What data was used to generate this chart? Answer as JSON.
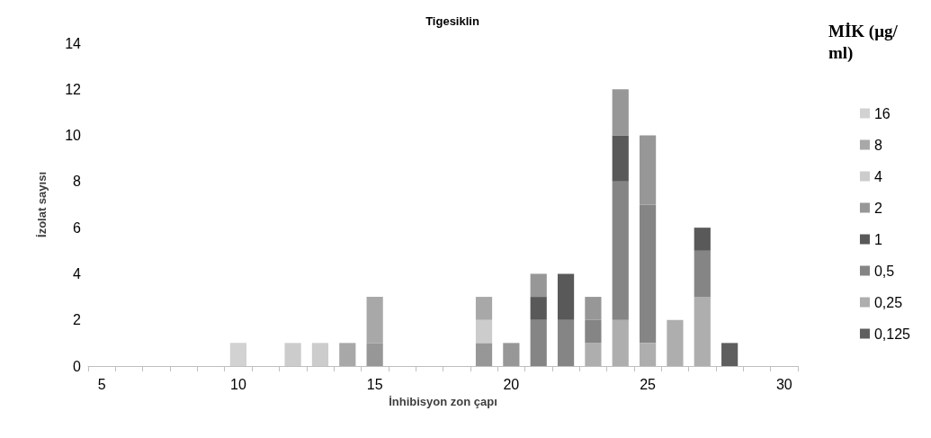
{
  "chart_data": {
    "type": "bar",
    "stacked": true,
    "title": "Tigesiklin",
    "xlabel": "İnhibisyon zon çapı",
    "ylabel": "İzolat sayısı",
    "legend_title": "MİK (μg/ml)",
    "legend": "right",
    "grid": false,
    "categories": [
      "5",
      null,
      null,
      null,
      null,
      "10",
      null,
      null,
      null,
      null,
      "15",
      null,
      null,
      null,
      null,
      "20",
      null,
      null,
      null,
      null,
      "25",
      null,
      null,
      null,
      null,
      "30"
    ],
    "ylim": [
      0,
      14
    ],
    "yticks": [
      0,
      2,
      4,
      6,
      8,
      10,
      12,
      14
    ],
    "series": [
      {
        "name": "0,125",
        "color": "#5e5e5e",
        "values": [
          null,
          null,
          null,
          null,
          null,
          null,
          null,
          null,
          null,
          null,
          null,
          null,
          null,
          null,
          null,
          null,
          null,
          null,
          null,
          null,
          null,
          null,
          null,
          1,
          null,
          null
        ]
      },
      {
        "name": "0,25",
        "color": "#aeaeae",
        "values": [
          null,
          null,
          null,
          null,
          null,
          null,
          null,
          null,
          null,
          null,
          null,
          null,
          null,
          null,
          null,
          null,
          null,
          null,
          1,
          2,
          1,
          2,
          3,
          null,
          null,
          null
        ]
      },
      {
        "name": "0,5",
        "color": "#858585",
        "values": [
          null,
          null,
          null,
          null,
          null,
          null,
          null,
          null,
          null,
          null,
          null,
          null,
          null,
          null,
          null,
          null,
          2,
          2,
          1,
          6,
          6,
          null,
          2,
          null,
          null,
          null
        ]
      },
      {
        "name": "1",
        "color": "#595959",
        "values": [
          null,
          null,
          null,
          null,
          null,
          null,
          null,
          null,
          null,
          null,
          null,
          null,
          null,
          null,
          null,
          null,
          1,
          2,
          null,
          2,
          null,
          null,
          1,
          null,
          null,
          null
        ]
      },
      {
        "name": "2",
        "color": "#979797",
        "values": [
          null,
          null,
          null,
          null,
          null,
          null,
          null,
          null,
          null,
          null,
          1,
          null,
          null,
          null,
          1,
          1,
          1,
          null,
          1,
          2,
          3,
          null,
          null,
          null,
          null,
          null
        ]
      },
      {
        "name": "4",
        "color": "#cccccc",
        "values": [
          null,
          null,
          null,
          null,
          null,
          null,
          null,
          1,
          1,
          null,
          null,
          null,
          null,
          null,
          1,
          null,
          null,
          null,
          null,
          null,
          null,
          null,
          null,
          null,
          null,
          null
        ]
      },
      {
        "name": "8",
        "color": "#a8a8a8",
        "values": [
          null,
          null,
          null,
          null,
          null,
          null,
          null,
          null,
          null,
          1,
          2,
          null,
          null,
          null,
          1,
          null,
          null,
          null,
          null,
          null,
          null,
          null,
          null,
          null,
          null,
          null
        ]
      },
      {
        "name": "16",
        "color": "#d2d2d2",
        "values": [
          null,
          null,
          null,
          null,
          null,
          1,
          null,
          null,
          null,
          null,
          null,
          null,
          null,
          null,
          null,
          null,
          null,
          null,
          null,
          null,
          null,
          null,
          null,
          null,
          null,
          null
        ]
      }
    ]
  }
}
